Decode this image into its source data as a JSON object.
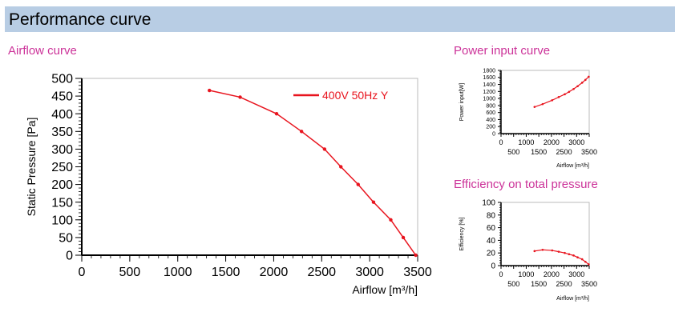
{
  "header": {
    "title": "Performance curve"
  },
  "colors": {
    "accent": "#cc3399",
    "series": "#e8141e",
    "banner": "#b8cde4"
  },
  "chart_data": [
    {
      "id": "airflow",
      "type": "line",
      "title": "Airflow curve",
      "xlabel": "Airflow [m³/h]",
      "ylabel": "Static Pressure [Pa]",
      "xlim": [
        0,
        3500
      ],
      "ylim": [
        0,
        500
      ],
      "xticks": [
        0,
        500,
        1000,
        1500,
        2000,
        2500,
        3000,
        3500
      ],
      "yticks": [
        0,
        50,
        100,
        150,
        200,
        250,
        300,
        350,
        400,
        450,
        500
      ],
      "legend": "top-right",
      "grid": false,
      "series": [
        {
          "name": "400V 50Hz Y",
          "x": [
            1330,
            1650,
            2030,
            2290,
            2530,
            2700,
            2880,
            3040,
            3220,
            3350,
            3480
          ],
          "y": [
            466,
            447,
            400,
            350,
            300,
            250,
            200,
            150,
            100,
            50,
            0
          ]
        }
      ]
    },
    {
      "id": "power",
      "type": "line",
      "title": "Power input curve",
      "xlabel": "Airflow [m³/h]",
      "ylabel": "Power input[W]",
      "xlim": [
        0,
        3500
      ],
      "ylim": [
        0,
        1800
      ],
      "xticks_top": [
        0,
        1000,
        2000,
        3000
      ],
      "xticks_bottom": [
        500,
        1500,
        2500,
        3500
      ],
      "yticks": [
        0,
        200,
        400,
        600,
        800,
        1000,
        1200,
        1400,
        1600,
        1800
      ],
      "grid": false,
      "series": [
        {
          "x": [
            1330,
            1650,
            2030,
            2290,
            2530,
            2700,
            2880,
            3040,
            3220,
            3350,
            3480
          ],
          "y": [
            760,
            840,
            950,
            1040,
            1120,
            1190,
            1270,
            1350,
            1450,
            1530,
            1620
          ]
        }
      ]
    },
    {
      "id": "efficiency",
      "type": "line",
      "title": "Efficiency on total pressure",
      "xlabel": "Airflow [m³/h]",
      "ylabel": "Efficiency [%]",
      "xlim": [
        0,
        3500
      ],
      "ylim": [
        0,
        100
      ],
      "xticks_top": [
        0,
        1000,
        2000,
        3000
      ],
      "xticks_bottom": [
        500,
        1500,
        2500,
        3500
      ],
      "yticks": [
        0,
        20,
        40,
        60,
        80,
        100
      ],
      "grid": false,
      "series": [
        {
          "x": [
            1330,
            1650,
            2030,
            2290,
            2530,
            2700,
            2880,
            3040,
            3220,
            3350,
            3480
          ],
          "y": [
            23,
            25,
            24,
            22,
            20,
            18,
            16,
            13,
            10,
            6,
            2
          ]
        }
      ]
    }
  ]
}
